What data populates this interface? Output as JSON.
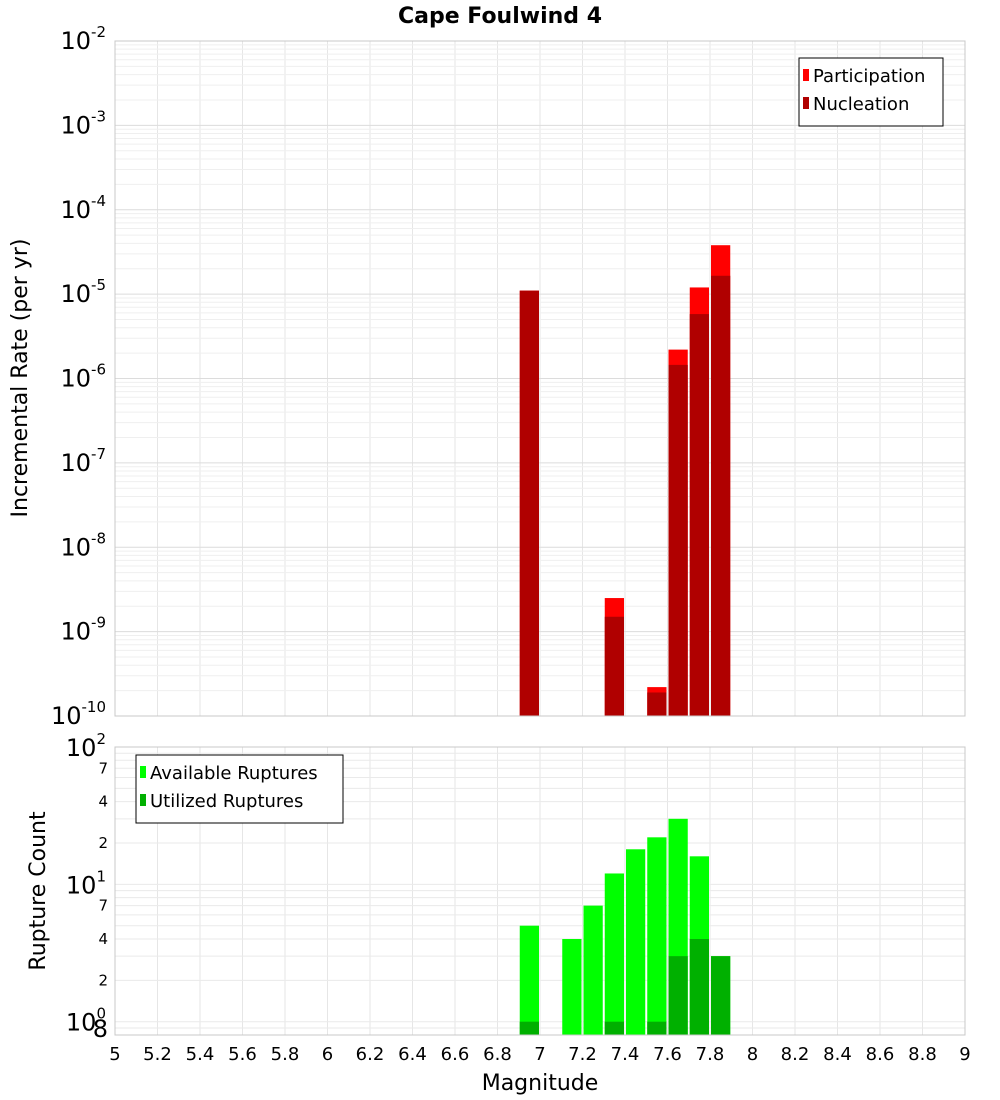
{
  "chart_data": [
    {
      "type": "bar",
      "title": "Cape Foulwind 4",
      "xlabel": "",
      "ylabel": "Incremental Rate (per yr)",
      "yscale": "log",
      "ylim": [
        1e-10,
        0.01
      ],
      "xlim": [
        5,
        9
      ],
      "y_tick_decades": [
        -10,
        -9,
        -8,
        -7,
        -6,
        -5,
        -4,
        -3,
        -2
      ],
      "legend_position": "top-right",
      "series": [
        {
          "name": "Participation",
          "color": "#ff0000",
          "x": [
            6.95,
            7.35,
            7.55,
            7.65,
            7.75,
            7.85
          ],
          "values": [
            1.1e-05,
            2.5e-09,
            2.2e-10,
            2.2e-06,
            1.2e-05,
            3.8e-05
          ]
        },
        {
          "name": "Nucleation",
          "color": "#b00000",
          "x": [
            6.95,
            7.35,
            7.55,
            7.65,
            7.75,
            7.85
          ],
          "values": [
            1.1e-05,
            1.5e-09,
            1.9e-10,
            1.45e-06,
            5.8e-06,
            1.65e-05
          ]
        }
      ]
    },
    {
      "type": "bar",
      "title": "",
      "xlabel": "Magnitude",
      "ylabel": "Rupture Count",
      "yscale": "log",
      "ylim": [
        0.8,
        100
      ],
      "xlim": [
        5,
        9
      ],
      "x_ticks": [
        "5",
        "5.2",
        "5.4",
        "5.6",
        "5.8",
        "6",
        "6.2",
        "6.4",
        "6.6",
        "6.8",
        "7",
        "7.2",
        "7.4",
        "7.6",
        "7.8",
        "8",
        "8.2",
        "8.4",
        "8.6",
        "8.8",
        "9"
      ],
      "y_minor_tick_labels": [
        {
          "value": 0.8,
          "label": "8"
        },
        {
          "value": 2,
          "label": "2"
        },
        {
          "value": 4,
          "label": "4"
        },
        {
          "value": 7,
          "label": "7"
        },
        {
          "value": 20,
          "label": "2"
        },
        {
          "value": 40,
          "label": "4"
        },
        {
          "value": 70,
          "label": "7"
        }
      ],
      "y_decade_labels": [
        {
          "value": 1,
          "base": "10",
          "exp": "0"
        },
        {
          "value": 10,
          "base": "10",
          "exp": "1"
        },
        {
          "value": 100,
          "base": "10",
          "exp": "2"
        }
      ],
      "legend_position": "top-left",
      "series": [
        {
          "name": "Available Ruptures",
          "color": "#00ff00",
          "x": [
            6.95,
            7.15,
            7.25,
            7.35,
            7.45,
            7.55,
            7.65,
            7.75,
            7.85
          ],
          "values": [
            5,
            4,
            7,
            12,
            18,
            22,
            30,
            16,
            3
          ]
        },
        {
          "name": "Utilized Ruptures",
          "color": "#00b000",
          "x": [
            6.95,
            7.35,
            7.55,
            7.65,
            7.75,
            7.85
          ],
          "values": [
            1,
            1,
            1,
            3,
            4,
            3
          ]
        }
      ]
    }
  ]
}
